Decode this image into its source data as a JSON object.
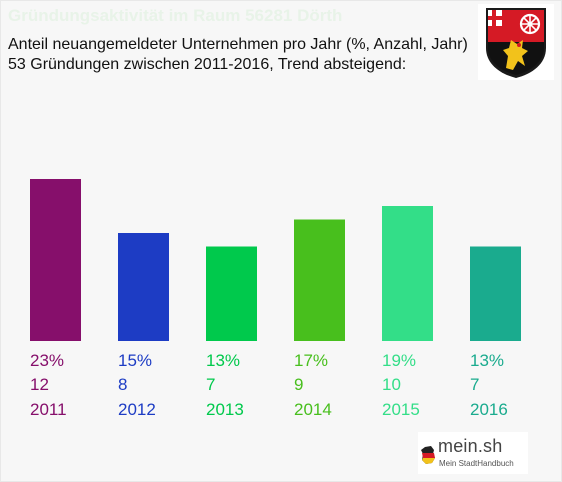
{
  "header": {
    "title": "Gründungsaktivität im Raum 56281 Dörth",
    "subtitle_line1": "Anteil neuangemeldeter Unternehmen pro Jahr (%, Anzahl, Jahr)",
    "subtitle_line2": "53 Gründungen zwischen 2011-2016, Trend absteigend:"
  },
  "crest": {
    "icon": "rhineland-palatinate-coat-of-arms-icon"
  },
  "logo": {
    "name": "mein.sh",
    "tagline": "Mein StadtHandbuch",
    "icon": "germany-flag-icon"
  },
  "colors": {
    "title": "#e8f3e8",
    "background": "#f7f7f7"
  },
  "chart_data": {
    "type": "bar",
    "title": "",
    "categories": [
      "2011",
      "2012",
      "2013",
      "2014",
      "2015",
      "2016"
    ],
    "percent_labels": [
      "23%",
      "15%",
      "13%",
      "17%",
      "19%",
      "13%"
    ],
    "count_labels": [
      "12",
      "8",
      "7",
      "9",
      "10",
      "7"
    ],
    "values": [
      12,
      8,
      7,
      9,
      10,
      7
    ],
    "colors": [
      "#860f6b",
      "#1d3cc4",
      "#00c94c",
      "#48bf1d",
      "#33de88",
      "#1aab8e"
    ],
    "grid": false,
    "legend": "none"
  }
}
